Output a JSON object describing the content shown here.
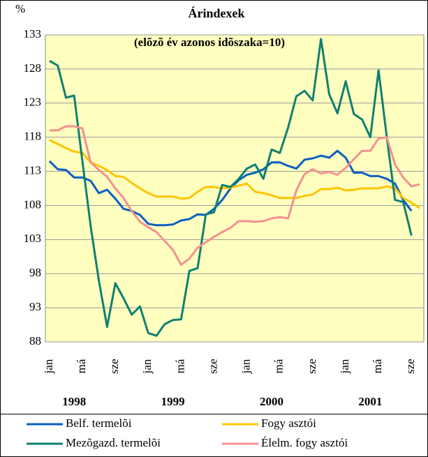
{
  "chart_data": {
    "type": "line",
    "title": "Árindexek",
    "subtitle": "(elõzõ év azonos idõszaka=10)",
    "y_label": "%",
    "categories": [
      "jan",
      null,
      null,
      null,
      "má",
      null,
      null,
      null,
      "sze",
      null,
      null,
      null,
      "jan",
      null,
      null,
      null,
      "má",
      null,
      null,
      null,
      "sze",
      null,
      null,
      null,
      "jan",
      null,
      null,
      null,
      "má",
      null,
      null,
      null,
      "sze",
      null,
      null,
      null,
      "jan",
      null,
      null,
      null,
      "má",
      null,
      null,
      null,
      "sze",
      null
    ],
    "year_labels": [
      "1998",
      "1999",
      "2000",
      "2001"
    ],
    "ylim": [
      88,
      133
    ],
    "yticks": [
      88,
      93,
      98,
      103,
      108,
      113,
      118,
      123,
      128,
      133
    ],
    "grid": true,
    "series": [
      {
        "name": "Belf. termelõi",
        "color": "#0a5fc4",
        "values": [
          114.5,
          113.3,
          113.2,
          112.1,
          112.1,
          111.6,
          109.8,
          110.3,
          109.0,
          107.5,
          107.2,
          106.6,
          105.3,
          105.1,
          105.1,
          105.2,
          105.8,
          106.0,
          106.7,
          106.6,
          107.5,
          108.8,
          110.5,
          111.7,
          112.5,
          112.8,
          113.3,
          114.3,
          114.3,
          113.8,
          113.4,
          114.7,
          114.9,
          115.3,
          115.0,
          116.0,
          115.0,
          112.8,
          112.8,
          112.3,
          112.3,
          111.9,
          111.2,
          108.8,
          107.2,
          null
        ]
      },
      {
        "name": "Fogy asztói",
        "color": "#ffc400",
        "values": [
          117.6,
          117.0,
          116.4,
          115.9,
          115.7,
          114.3,
          113.8,
          113.2,
          112.3,
          112.2,
          111.3,
          110.5,
          109.8,
          109.3,
          109.3,
          109.3,
          109.0,
          109.1,
          110.0,
          110.7,
          110.7,
          110.5,
          110.6,
          110.9,
          111.2,
          110.0,
          109.8,
          109.5,
          109.1,
          109.1,
          109.1,
          109.4,
          109.6,
          110.4,
          110.4,
          110.6,
          110.2,
          110.3,
          110.5,
          110.5,
          110.5,
          110.8,
          110.5,
          109.1,
          108.4,
          107.6
        ]
      },
      {
        "name": "Mezõgazd. termelõi",
        "color": "#0f8070",
        "values": [
          129.2,
          128.5,
          123.8,
          124.1,
          114.5,
          105.0,
          97.0,
          90.2,
          96.6,
          94.4,
          92.0,
          93.2,
          89.3,
          88.9,
          90.6,
          91.2,
          91.3,
          98.4,
          98.8,
          106.7,
          107.0,
          111.0,
          110.7,
          111.9,
          113.4,
          114.0,
          111.9,
          116.2,
          115.7,
          119.4,
          124.0,
          124.8,
          123.4,
          132.4,
          124.3,
          121.5,
          126.2,
          121.4,
          120.6,
          118.0,
          127.8,
          118.0,
          108.8,
          108.5,
          103.6,
          null
        ]
      },
      {
        "name": "Élelm. fogy asztói",
        "color": "#f59090",
        "values": [
          119.0,
          119.0,
          119.6,
          119.6,
          119.3,
          114.3,
          113.2,
          112.2,
          110.5,
          109.1,
          107.2,
          105.6,
          104.8,
          104.1,
          102.8,
          101.5,
          99.3,
          100.2,
          101.8,
          102.6,
          103.4,
          104.1,
          104.7,
          105.7,
          105.7,
          105.6,
          105.7,
          106.1,
          106.3,
          106.1,
          110.2,
          112.6,
          113.3,
          112.7,
          112.9,
          112.5,
          113.5,
          114.8,
          116.0,
          116.0,
          117.8,
          118.0,
          114.0,
          112.1,
          110.8,
          111.1
        ]
      }
    ]
  }
}
